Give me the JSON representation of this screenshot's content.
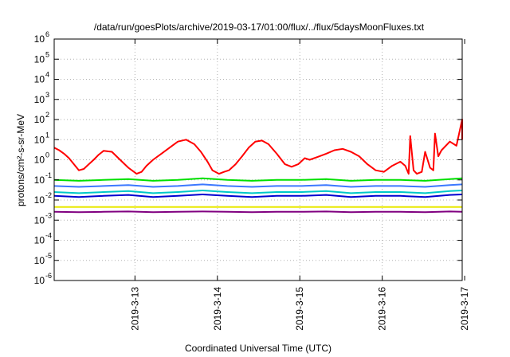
{
  "chart_data": {
    "type": "line",
    "title": "/data/run/goesPlots/archive/2019-03-17/01:00/flux/../flux/5daysMoonFluxes.txt",
    "xlabel": "Coordinated Universal Time (UTC)",
    "ylabel": "protons/cm²-s-sr-MeV",
    "y_scale": "log",
    "ylim": [
      1e-06,
      1000000.0
    ],
    "xlim": [
      0,
      4.95
    ],
    "x_ticks": [
      {
        "label": "2019-3-13",
        "value": 0.98
      },
      {
        "label": "2019-3-14",
        "value": 1.98
      },
      {
        "label": "2019-3-15",
        "value": 2.98
      },
      {
        "label": "2019-3-16",
        "value": 3.98
      },
      {
        "label": "2019-3-17",
        "value": 4.98
      }
    ],
    "y_ticks": [
      {
        "base": "10",
        "exp": "-6",
        "value": -6
      },
      {
        "base": "10",
        "exp": "-5",
        "value": -5
      },
      {
        "base": "10",
        "exp": "-4",
        "value": -4
      },
      {
        "base": "10",
        "exp": "-3",
        "value": -3
      },
      {
        "base": "10",
        "exp": "-2",
        "value": -2
      },
      {
        "base": "10",
        "exp": "-1",
        "value": -1
      },
      {
        "base": "10",
        "exp": "0",
        "value": 0
      },
      {
        "base": "10",
        "exp": "1",
        "value": 1
      },
      {
        "base": "10",
        "exp": "2",
        "value": 2
      },
      {
        "base": "10",
        "exp": "3",
        "value": 3
      },
      {
        "base": "10",
        "exp": "4",
        "value": 4
      },
      {
        "base": "10",
        "exp": "5",
        "value": 5
      },
      {
        "base": "10",
        "exp": "6",
        "value": 6
      }
    ],
    "grid": true,
    "series": [
      {
        "color": "#ff0000",
        "x": [
          0.0,
          0.06,
          0.12,
          0.18,
          0.24,
          0.3,
          0.36,
          0.42,
          0.48,
          0.54,
          0.6,
          0.7,
          0.8,
          0.9,
          1.0,
          1.06,
          1.12,
          1.2,
          1.3,
          1.4,
          1.5,
          1.6,
          1.7,
          1.78,
          1.86,
          1.92,
          2.0,
          2.06,
          2.12,
          2.2,
          2.28,
          2.36,
          2.44,
          2.52,
          2.6,
          2.7,
          2.8,
          2.88,
          2.96,
          3.04,
          3.1,
          3.2,
          3.3,
          3.4,
          3.5,
          3.6,
          3.7,
          3.8,
          3.9,
          4.0,
          4.1,
          4.2,
          4.26,
          4.3,
          4.32,
          4.36,
          4.4,
          4.46,
          4.5,
          4.56,
          4.6,
          4.62,
          4.66,
          4.7,
          4.8,
          4.88,
          4.96,
          5.0
        ],
        "values": [
          4,
          3,
          2,
          1.2,
          0.6,
          0.3,
          0.35,
          0.6,
          1.0,
          1.8,
          2.8,
          2.5,
          1.0,
          0.4,
          0.2,
          0.25,
          0.5,
          1.0,
          2.0,
          4.0,
          8.0,
          10.0,
          6.0,
          2.5,
          0.8,
          0.3,
          0.2,
          0.25,
          0.3,
          0.6,
          1.5,
          4.0,
          8.0,
          9.0,
          6.0,
          2.0,
          0.6,
          0.45,
          0.6,
          1.2,
          1.0,
          1.4,
          2.0,
          3.0,
          3.5,
          2.5,
          1.5,
          0.6,
          0.3,
          0.25,
          0.5,
          0.8,
          0.5,
          0.2,
          15,
          0.3,
          0.2,
          0.25,
          2.5,
          0.4,
          0.3,
          20,
          1.5,
          3.0,
          8.0,
          5.0,
          100,
          10
        ]
      },
      {
        "color": "#00e000",
        "x": [
          0.0,
          0.3,
          0.6,
          0.9,
          1.2,
          1.5,
          1.8,
          2.1,
          2.4,
          2.7,
          3.0,
          3.3,
          3.6,
          3.9,
          4.2,
          4.5,
          4.8,
          5.0
        ],
        "values": [
          0.1,
          0.09,
          0.1,
          0.11,
          0.09,
          0.1,
          0.12,
          0.1,
          0.09,
          0.1,
          0.1,
          0.11,
          0.09,
          0.1,
          0.1,
          0.09,
          0.11,
          0.12
        ]
      },
      {
        "color": "#3c78ff",
        "x": [
          0.0,
          0.3,
          0.6,
          0.9,
          1.2,
          1.5,
          1.8,
          2.1,
          2.4,
          2.7,
          3.0,
          3.3,
          3.6,
          3.9,
          4.2,
          4.5,
          4.8,
          5.0
        ],
        "values": [
          0.05,
          0.045,
          0.05,
          0.055,
          0.045,
          0.05,
          0.06,
          0.05,
          0.045,
          0.05,
          0.05,
          0.055,
          0.045,
          0.05,
          0.05,
          0.045,
          0.055,
          0.06
        ]
      },
      {
        "color": "#00c8c8",
        "x": [
          0.0,
          0.3,
          0.6,
          0.9,
          1.2,
          1.5,
          1.8,
          2.1,
          2.4,
          2.7,
          3.0,
          3.3,
          3.6,
          3.9,
          4.2,
          4.5,
          4.8,
          5.0
        ],
        "values": [
          0.025,
          0.022,
          0.025,
          0.028,
          0.022,
          0.025,
          0.03,
          0.025,
          0.022,
          0.025,
          0.025,
          0.028,
          0.022,
          0.025,
          0.025,
          0.022,
          0.028,
          0.03
        ]
      },
      {
        "color": "#0000d0",
        "x": [
          0.0,
          0.3,
          0.6,
          0.9,
          1.2,
          1.5,
          1.8,
          2.1,
          2.4,
          2.7,
          3.0,
          3.3,
          3.6,
          3.9,
          4.2,
          4.5,
          4.8,
          5.0
        ],
        "values": [
          0.016,
          0.014,
          0.016,
          0.018,
          0.014,
          0.016,
          0.019,
          0.016,
          0.014,
          0.016,
          0.016,
          0.018,
          0.014,
          0.016,
          0.016,
          0.014,
          0.018,
          0.019
        ]
      },
      {
        "color": "#e8e800",
        "x": [
          0.0,
          0.3,
          0.6,
          0.9,
          1.2,
          1.5,
          1.8,
          2.1,
          2.4,
          2.7,
          3.0,
          3.3,
          3.6,
          3.9,
          4.2,
          4.5,
          4.8,
          5.0
        ],
        "values": [
          0.0045,
          0.0045,
          0.0045,
          0.0045,
          0.0045,
          0.0045,
          0.0045,
          0.0045,
          0.0045,
          0.0045,
          0.0045,
          0.0045,
          0.0045,
          0.0045,
          0.0045,
          0.0045,
          0.0045,
          0.0045
        ]
      },
      {
        "color": "#800080",
        "x": [
          0.0,
          0.3,
          0.6,
          0.9,
          1.2,
          1.5,
          1.8,
          2.1,
          2.4,
          2.7,
          3.0,
          3.3,
          3.6,
          3.9,
          4.2,
          4.5,
          4.8,
          5.0
        ],
        "values": [
          0.0026,
          0.0025,
          0.0026,
          0.0027,
          0.0025,
          0.0026,
          0.0027,
          0.0026,
          0.0025,
          0.0026,
          0.0026,
          0.0027,
          0.0025,
          0.0026,
          0.0026,
          0.0025,
          0.0027,
          0.0026
        ]
      }
    ]
  }
}
